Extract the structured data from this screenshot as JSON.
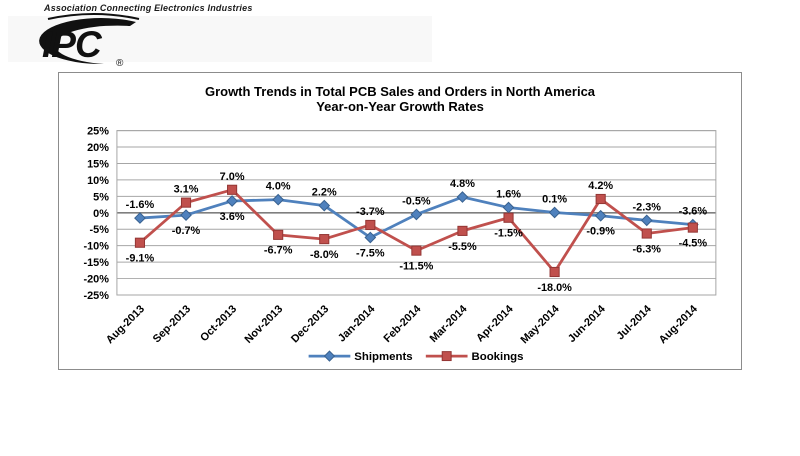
{
  "header": {
    "association_label": "Association Connecting Electronics Industries",
    "logo_text": "IPC",
    "registered_mark": "®"
  },
  "chart_data": {
    "type": "line",
    "title": "Growth Trends in Total PCB Sales and Orders in North America",
    "subtitle": "Year-on-Year Growth Rates",
    "categories": [
      "Aug-2013",
      "Sep-2013",
      "Oct-2013",
      "Nov-2013",
      "Dec-2013",
      "Jan-2014",
      "Feb-2014",
      "Mar-2014",
      "Apr-2014",
      "May-2014",
      "Jun-2014",
      "Jul-2014",
      "Aug-2014"
    ],
    "series": [
      {
        "name": "Shipments",
        "color": "#4F81BD",
        "edge_color": "#38618F",
        "marker": "diamond",
        "values": [
          -1.6,
          -0.7,
          3.6,
          4.0,
          2.2,
          -7.5,
          -0.5,
          4.8,
          1.6,
          0.1,
          -0.9,
          -2.3,
          -3.6
        ],
        "label_positions": [
          "above",
          "below",
          "below",
          "above",
          "above",
          "below",
          "above",
          "above",
          "above",
          "above",
          "below",
          "above",
          "above"
        ]
      },
      {
        "name": "Bookings",
        "color": "#C0504D",
        "edge_color": "#933634",
        "marker": "square",
        "values": [
          -9.1,
          3.1,
          7.0,
          -6.7,
          -8.0,
          -3.7,
          -11.5,
          -5.5,
          -1.5,
          -18.0,
          4.2,
          -6.3,
          -4.5
        ],
        "label_positions": [
          "below",
          "above",
          "above",
          "below",
          "below",
          "above",
          "below",
          "below",
          "below",
          "below",
          "above",
          "below",
          "below"
        ]
      }
    ],
    "y_axis": {
      "min": -25,
      "max": 25,
      "step": 5,
      "suffix": "%"
    },
    "x_label_rotation": -45,
    "grid": "horizontal",
    "grid_color": "#A6A6A6",
    "zero_line_color": "#7f7f7f",
    "data_label_decimals": 1,
    "data_label_suffix": "%",
    "legend_position": "bottom"
  }
}
